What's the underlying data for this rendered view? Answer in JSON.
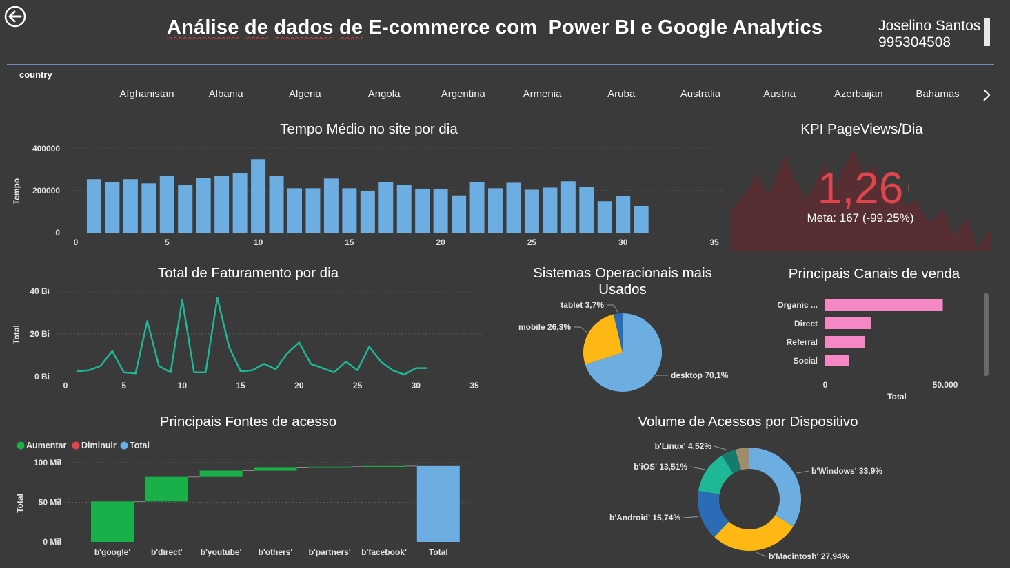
{
  "header": {
    "title_part1": "Análise",
    "title_part2": "de",
    "title_part3": "dados",
    "title_part4": "de",
    "title_part5": "E-commerce com  Power BI e Google Analytics",
    "user_name": "Joselino Santos",
    "user_id": "995304508"
  },
  "slicer": {
    "label": "country",
    "countries": [
      "Afghanistan",
      "Albania",
      "Algeria",
      "Angola",
      "Argentina",
      "Armenia",
      "Aruba",
      "Australia",
      "Austria",
      "Azerbaijan",
      "Bahamas"
    ]
  },
  "icons": {
    "back": "back-arrow-icon",
    "next": "chevron-right-icon"
  },
  "colors": {
    "bar_blue": "#6daee2",
    "line_teal": "#1fb896",
    "kpi_red": "#e0454d",
    "pink": "#f587c4",
    "green": "#19b04a",
    "yellow": "#fdb813"
  },
  "chart_data": [
    {
      "type": "bar",
      "title": "Tempo Médio no site por dia",
      "ylabel": "Tempo",
      "x": [
        1,
        2,
        3,
        4,
        5,
        6,
        7,
        8,
        9,
        10,
        11,
        12,
        13,
        14,
        15,
        16,
        17,
        18,
        19,
        20,
        21,
        22,
        23,
        24,
        25,
        26,
        27,
        28,
        29,
        30,
        31
      ],
      "values": [
        255000,
        242000,
        255000,
        235000,
        272000,
        228000,
        260000,
        272000,
        283000,
        350000,
        272000,
        212000,
        212000,
        258000,
        212000,
        198000,
        242000,
        228000,
        210000,
        210000,
        178000,
        242000,
        212000,
        238000,
        205000,
        215000,
        245000,
        218000,
        150000,
        175000,
        128000
      ],
      "xticks": [
        "0",
        "5",
        "10",
        "15",
        "20",
        "25",
        "30",
        "35"
      ],
      "yticks": [
        "0",
        "200000",
        "400000"
      ],
      "xlim": [
        0,
        35
      ],
      "ylim": [
        0,
        400000
      ],
      "grid": true
    },
    {
      "type": "line",
      "title": "Total de Faturamento por dia",
      "ylabel": "Total",
      "x": [
        1,
        2,
        3,
        4,
        5,
        6,
        7,
        8,
        9,
        10,
        11,
        12,
        13,
        14,
        15,
        16,
        17,
        18,
        19,
        20,
        21,
        22,
        23,
        24,
        25,
        26,
        27,
        28,
        29,
        30,
        31
      ],
      "values": [
        2.5,
        3,
        5,
        12,
        2,
        1.5,
        26,
        5,
        2,
        36,
        2,
        2,
        37,
        14,
        2.5,
        3,
        6,
        3.5,
        11,
        16,
        6,
        4,
        2,
        7,
        3,
        14,
        7,
        3,
        1,
        4,
        4
      ],
      "unit": "Bi",
      "xticks": [
        "0",
        "5",
        "10",
        "15",
        "20",
        "25",
        "30",
        "35"
      ],
      "yticks": [
        "0 Bi",
        "20 Bi",
        "40 Bi"
      ],
      "xlim": [
        0,
        35
      ],
      "ylim": [
        0,
        40
      ],
      "grid": true
    },
    {
      "type": "area",
      "title": "KPI PageViews/Dia",
      "kpi_value": "1,26",
      "kpi_marker": "!",
      "goal_text": "Meta: 167 (-99.25%)"
    },
    {
      "type": "pie",
      "title": "Sistemas Operacionais mais Usados",
      "slices": [
        {
          "label": "desktop 70,1%",
          "value": 70.1,
          "color": "#6daee2"
        },
        {
          "label": "mobile 26,3%",
          "value": 26.3,
          "color": "#fdb813"
        },
        {
          "label": "tablet 3,7%",
          "value": 3.7,
          "color": "#2a6db6"
        }
      ]
    },
    {
      "type": "bar",
      "orientation": "horizontal",
      "title": "Principais Canais de venda",
      "categories": [
        "Organic ...",
        "Direct",
        "Referral",
        "Social"
      ],
      "values": [
        49000,
        19000,
        16500,
        9800
      ],
      "xticks": [
        "0",
        "50.000"
      ],
      "xlabel": "Total",
      "xlim": [
        0,
        55000
      ]
    },
    {
      "type": "bar",
      "subtype": "waterfall",
      "title": "Principais Fontes de acesso",
      "legend": [
        "Aumentar",
        "Diminuir",
        "Total"
      ],
      "legend_colors": [
        "#19b04a",
        "#e0454d",
        "#6daee2"
      ],
      "ylabel": "Total",
      "categories": [
        "b'google'",
        "b'direct'",
        "b'youtube'",
        "b'others'",
        "b'partners'",
        "b'facebook'",
        "Total"
      ],
      "values": [
        51000,
        31000,
        8000,
        3500,
        1500,
        800,
        95800
      ],
      "yticks": [
        "0 Mil",
        "50 Mil",
        "100 Mil"
      ],
      "ylim": [
        0,
        100000
      ]
    },
    {
      "type": "pie",
      "subtype": "donut",
      "title": "Volume de Acessos por Dispositivo",
      "slices": [
        {
          "label": "b'Windows' 33,9%",
          "value": 33.9,
          "color": "#6daee2"
        },
        {
          "label": "b'Macintosh' 27,94%",
          "value": 27.94,
          "color": "#fdb813"
        },
        {
          "label": "b'Android' 15,74%",
          "value": 15.74,
          "color": "#2a6db6"
        },
        {
          "label": "b'iOS' 13,51%",
          "value": 13.51,
          "color": "#1fb896"
        },
        {
          "label": "b'Linux' 4,52%",
          "value": 4.52,
          "color": "#177a6e"
        },
        {
          "label": "",
          "value": 4.39,
          "color": "#a08c6a"
        }
      ]
    }
  ]
}
